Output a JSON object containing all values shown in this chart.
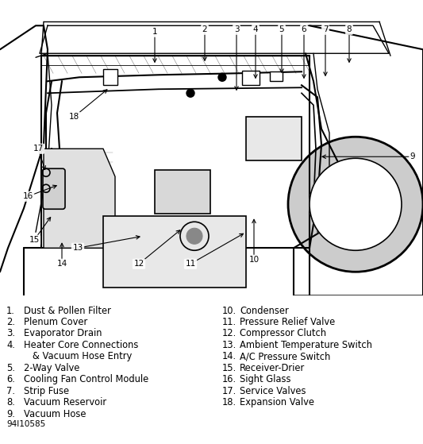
{
  "figsize": [
    5.33,
    5.59
  ],
  "dpi": 100,
  "bg_color": "#ffffff",
  "left_labels": [
    [
      "1.",
      "Dust & Pollen Filter"
    ],
    [
      "2.",
      "Plenum Cover"
    ],
    [
      "3.",
      "Evaporator Drain"
    ],
    [
      "4.",
      "Heater Core Connections"
    ],
    [
      "",
      "   & Vacuum Hose Entry"
    ],
    [
      "5.",
      "2-Way Valve"
    ],
    [
      "6.",
      "Cooling Fan Control Module"
    ],
    [
      "7.",
      "Strip Fuse"
    ],
    [
      "8.",
      "Vacuum Reservoir"
    ],
    [
      "9.",
      "Vacuum Hose"
    ]
  ],
  "right_labels": [
    [
      "10.",
      "Condenser"
    ],
    [
      "11.",
      "Pressure Relief Valve"
    ],
    [
      "12.",
      "Compressor Clutch"
    ],
    [
      "13.",
      "Ambient Temperature Switch"
    ],
    [
      "14.",
      "A/C Pressure Switch"
    ],
    [
      "15.",
      "Receiver-Drier"
    ],
    [
      "16.",
      "Sight Glass"
    ],
    [
      "17.",
      "Service Valves"
    ],
    [
      "18.",
      "Expansion Valve"
    ]
  ],
  "footnote": "94I10585",
  "label_fontsize": 8.3,
  "footnote_fontsize": 7.5
}
